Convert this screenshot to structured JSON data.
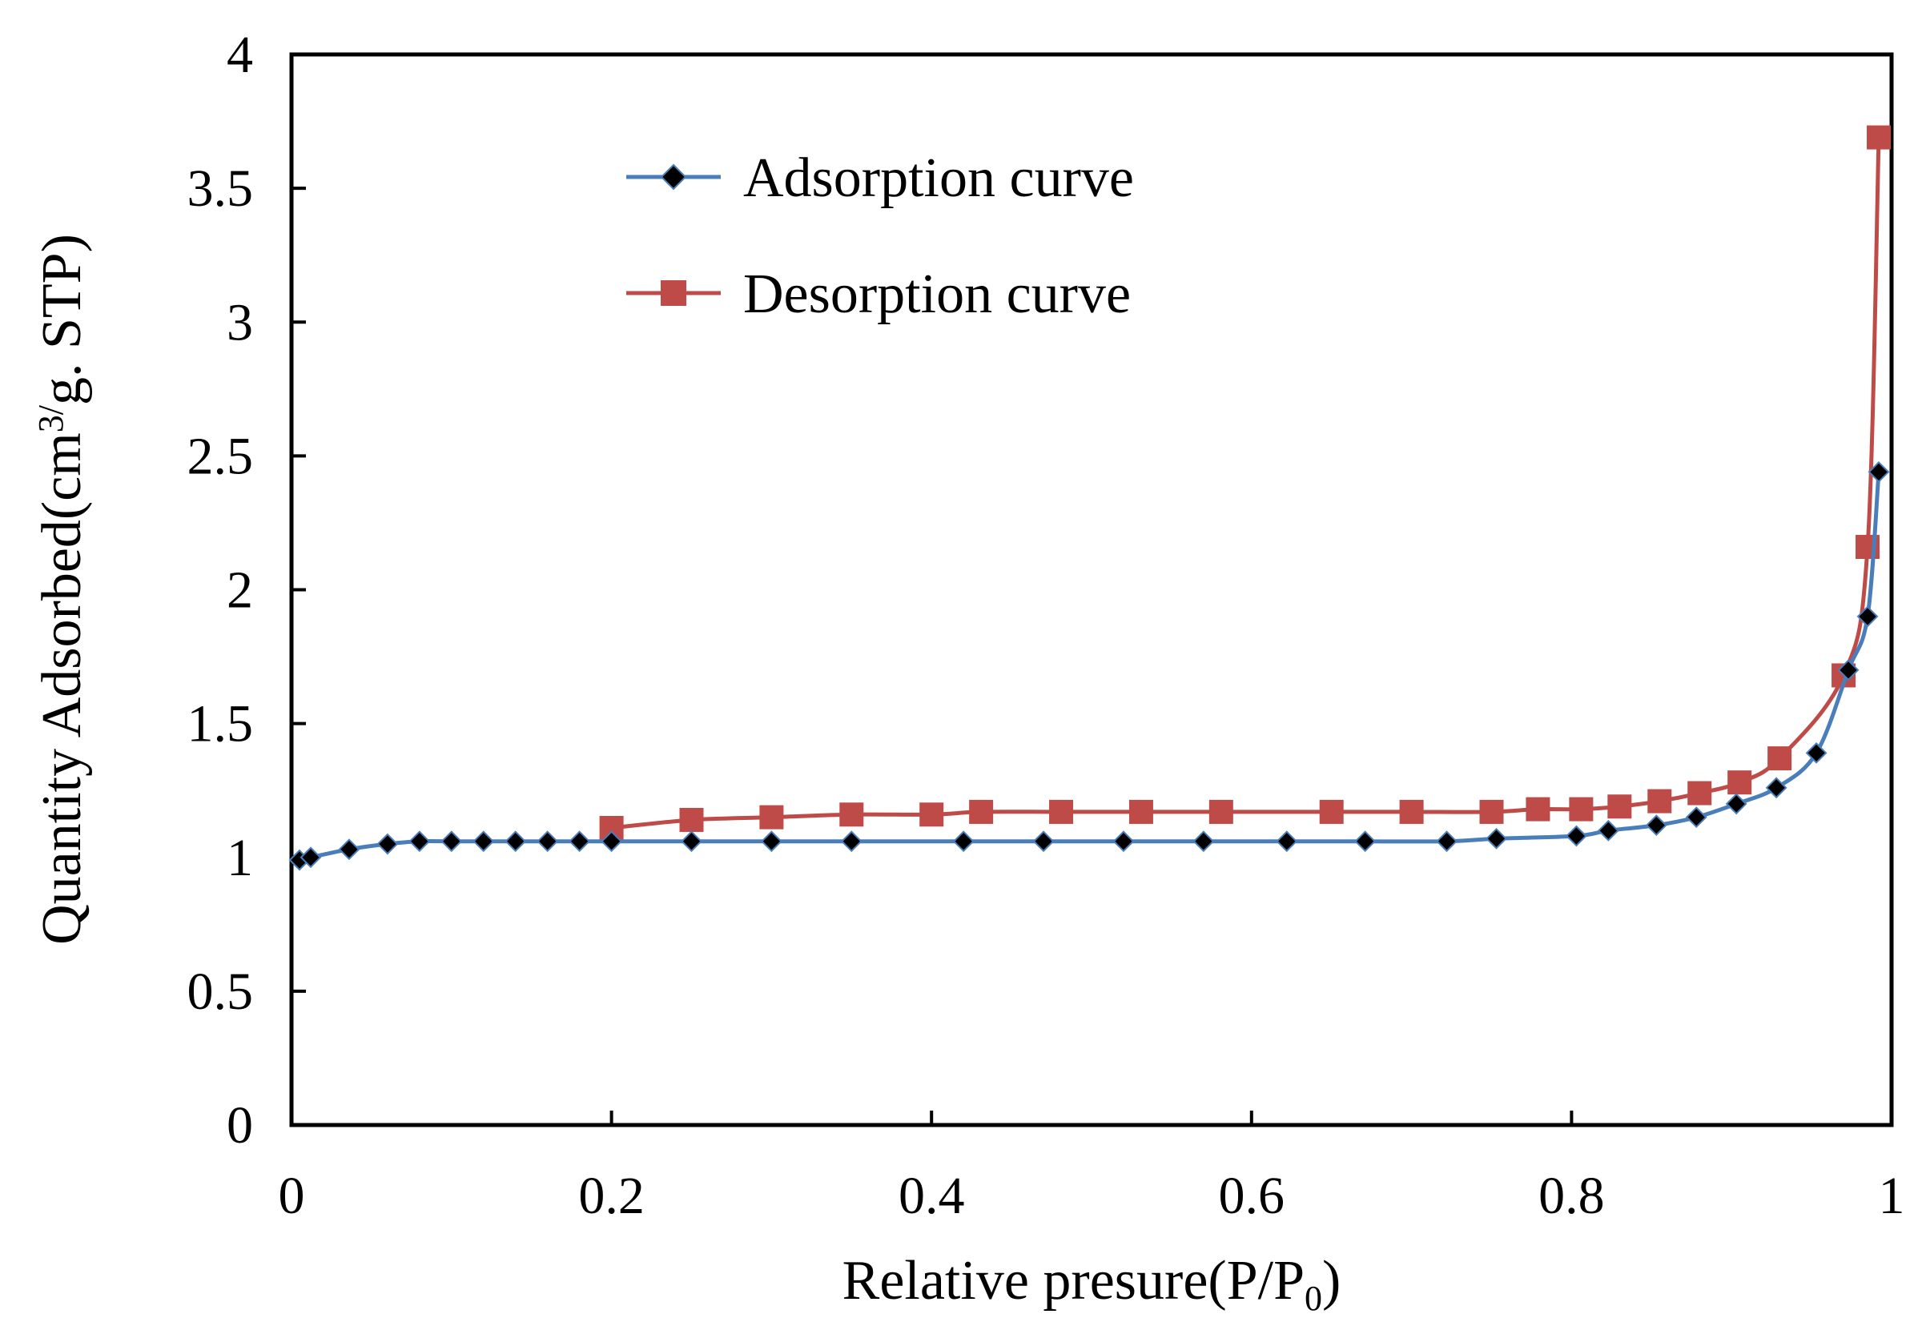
{
  "chart_data": {
    "type": "line",
    "title": "",
    "xlabel": "Relative presure(P/P",
    "xlabel_subscript": "0",
    "xlabel_suffix": ")",
    "ylabel": "Quantity Adsorbed(cm",
    "ylabel_superscript": "3/",
    "ylabel_suffix": "g. STP)",
    "xlim": [
      0,
      1
    ],
    "ylim": [
      0,
      4
    ],
    "xticks": [
      0,
      0.2,
      0.4,
      0.6,
      0.8,
      1
    ],
    "xtick_labels": [
      "0",
      "0.2",
      "0.4",
      "0.6",
      "0.8",
      "1"
    ],
    "yticks": [
      0,
      0.5,
      1,
      1.5,
      2,
      2.5,
      3,
      3.5,
      4
    ],
    "ytick_labels": [
      "0",
      "0.5",
      "1",
      "1.5",
      "2",
      "2.5",
      "3",
      "3.5",
      "4"
    ],
    "grid": false,
    "legend_position": "upper-left",
    "series": [
      {
        "name": "Adsorption curve",
        "color": "#4a7ebb",
        "marker": "diamond",
        "marker_color": "#000000",
        "x": [
          0.005,
          0.012,
          0.036,
          0.06,
          0.08,
          0.1,
          0.12,
          0.14,
          0.16,
          0.18,
          0.2,
          0.25,
          0.3,
          0.35,
          0.42,
          0.47,
          0.52,
          0.57,
          0.622,
          0.671,
          0.722,
          0.753,
          0.803,
          0.823,
          0.853,
          0.878,
          0.903,
          0.928,
          0.953,
          0.973,
          0.985,
          0.992
        ],
        "y": [
          0.99,
          1.0,
          1.03,
          1.05,
          1.06,
          1.06,
          1.06,
          1.06,
          1.06,
          1.06,
          1.06,
          1.06,
          1.06,
          1.06,
          1.06,
          1.06,
          1.06,
          1.06,
          1.06,
          1.06,
          1.06,
          1.07,
          1.08,
          1.1,
          1.12,
          1.15,
          1.2,
          1.26,
          1.39,
          1.7,
          1.9,
          2.44
        ]
      },
      {
        "name": "Desorption curve",
        "color": "#be4b48",
        "marker": "square",
        "marker_color": "#be4b48",
        "x": [
          0.2,
          0.25,
          0.3,
          0.35,
          0.4,
          0.431,
          0.481,
          0.531,
          0.581,
          0.65,
          0.7,
          0.75,
          0.779,
          0.806,
          0.83,
          0.855,
          0.88,
          0.905,
          0.93,
          0.97,
          0.985,
          0.992
        ],
        "y": [
          1.11,
          1.14,
          1.15,
          1.16,
          1.16,
          1.17,
          1.17,
          1.17,
          1.17,
          1.17,
          1.17,
          1.17,
          1.18,
          1.18,
          1.19,
          1.21,
          1.24,
          1.28,
          1.37,
          1.68,
          2.16,
          3.69
        ]
      }
    ]
  }
}
